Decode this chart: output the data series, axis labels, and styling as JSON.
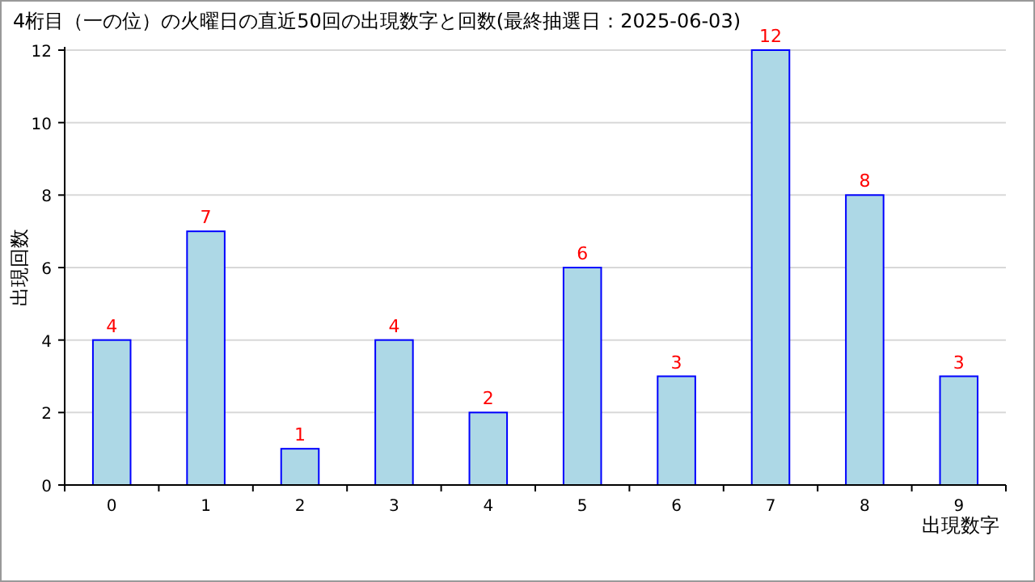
{
  "chart_data": {
    "type": "bar",
    "title": "4桁目（一の位）の火曜日の直近50回の出現数字と回数(最終抽選日：2025-06-03)",
    "xlabel": "出現数字",
    "ylabel": "出現回数",
    "categories": [
      "0",
      "1",
      "2",
      "3",
      "4",
      "5",
      "6",
      "7",
      "8",
      "9"
    ],
    "values": [
      4,
      7,
      1,
      4,
      2,
      6,
      3,
      12,
      8,
      3
    ],
    "color": "#add8e6",
    "ylim": [
      0,
      12
    ],
    "yticks": [
      0,
      2,
      4,
      6,
      8,
      10,
      12
    ],
    "grid": "y",
    "data_labels": true
  }
}
